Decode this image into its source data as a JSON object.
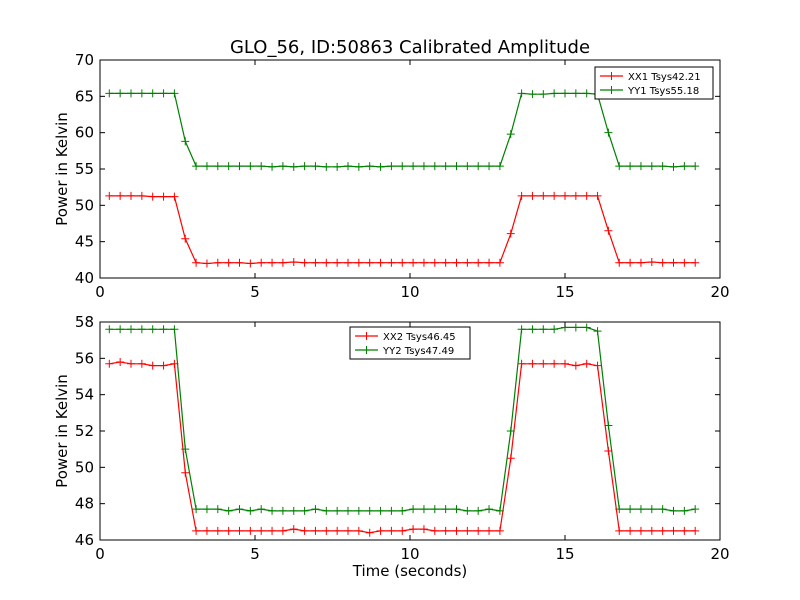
{
  "figure_title": "GLO_56, ID:50863 Calibrated Amplitude",
  "colors": {
    "xx": "#ff0000",
    "yy": "#008000",
    "axis": "#000000",
    "background": "#ffffff"
  },
  "chart_data": [
    {
      "type": "line",
      "title": "GLO_56, ID:50863 Calibrated Amplitude",
      "xlabel": "",
      "ylabel": "Power in Kelvin",
      "xlim": [
        0,
        20
      ],
      "ylim": [
        40,
        70
      ],
      "xticks": [
        0,
        5,
        10,
        15,
        20
      ],
      "yticks": [
        40,
        45,
        50,
        55,
        60,
        65,
        70
      ],
      "grid": false,
      "legend": "top-right",
      "x": [
        0.3,
        0.65,
        1.0,
        1.35,
        1.7,
        2.05,
        2.4,
        2.75,
        3.1,
        3.45,
        3.8,
        4.15,
        4.5,
        4.85,
        5.2,
        5.55,
        5.9,
        6.25,
        6.6,
        6.95,
        7.3,
        7.65,
        8.0,
        8.35,
        8.7,
        9.05,
        9.4,
        9.75,
        10.1,
        10.45,
        10.8,
        11.15,
        11.5,
        11.85,
        12.2,
        12.55,
        12.9,
        13.25,
        13.6,
        13.95,
        14.3,
        14.65,
        15.0,
        15.35,
        15.7,
        16.05,
        16.4,
        16.75,
        17.1,
        17.45,
        17.8,
        18.15,
        18.5,
        18.85,
        19.2
      ],
      "series": [
        {
          "name": "XX1 Tsys42.21",
          "color": "#ff0000",
          "values": [
            51.3,
            51.3,
            51.3,
            51.3,
            51.2,
            51.2,
            51.2,
            45.4,
            42.1,
            42.0,
            42.1,
            42.1,
            42.1,
            42.0,
            42.1,
            42.1,
            42.1,
            42.2,
            42.1,
            42.1,
            42.1,
            42.1,
            42.1,
            42.1,
            42.1,
            42.1,
            42.1,
            42.1,
            42.1,
            42.1,
            42.1,
            42.1,
            42.1,
            42.1,
            42.1,
            42.1,
            42.1,
            46.1,
            51.3,
            51.3,
            51.3,
            51.3,
            51.3,
            51.3,
            51.3,
            51.3,
            46.5,
            42.1,
            42.1,
            42.1,
            42.2,
            42.1,
            42.1,
            42.1,
            42.1
          ]
        },
        {
          "name": "YY1 Tsys55.18",
          "color": "#008000",
          "values": [
            65.4,
            65.4,
            65.4,
            65.4,
            65.4,
            65.4,
            65.4,
            58.8,
            55.4,
            55.4,
            55.4,
            55.4,
            55.4,
            55.4,
            55.4,
            55.3,
            55.4,
            55.3,
            55.4,
            55.4,
            55.3,
            55.3,
            55.4,
            55.3,
            55.4,
            55.3,
            55.4,
            55.4,
            55.4,
            55.4,
            55.4,
            55.4,
            55.4,
            55.4,
            55.4,
            55.4,
            55.4,
            59.8,
            65.4,
            65.3,
            65.3,
            65.4,
            65.4,
            65.4,
            65.4,
            65.3,
            60.0,
            55.4,
            55.4,
            55.4,
            55.4,
            55.4,
            55.3,
            55.4,
            55.4
          ]
        }
      ]
    },
    {
      "type": "line",
      "title": "",
      "xlabel": "Time (seconds)",
      "ylabel": "Power in Kelvin",
      "xlim": [
        0,
        20
      ],
      "ylim": [
        46,
        58
      ],
      "xticks": [
        0,
        5,
        10,
        15,
        20
      ],
      "yticks": [
        46,
        48,
        50,
        52,
        54,
        56,
        58
      ],
      "grid": false,
      "legend": "top-center",
      "x": [
        0.3,
        0.65,
        1.0,
        1.35,
        1.7,
        2.05,
        2.4,
        2.75,
        3.1,
        3.45,
        3.8,
        4.15,
        4.5,
        4.85,
        5.2,
        5.55,
        5.9,
        6.25,
        6.6,
        6.95,
        7.3,
        7.65,
        8.0,
        8.35,
        8.7,
        9.05,
        9.4,
        9.75,
        10.1,
        10.45,
        10.8,
        11.15,
        11.5,
        11.85,
        12.2,
        12.55,
        12.9,
        13.25,
        13.6,
        13.95,
        14.3,
        14.65,
        15.0,
        15.35,
        15.7,
        16.05,
        16.4,
        16.75,
        17.1,
        17.45,
        17.8,
        18.15,
        18.5,
        18.85,
        19.2
      ],
      "series": [
        {
          "name": "XX2 Tsys46.45",
          "color": "#ff0000",
          "values": [
            55.7,
            55.8,
            55.7,
            55.7,
            55.6,
            55.6,
            55.7,
            49.7,
            46.5,
            46.5,
            46.5,
            46.5,
            46.5,
            46.5,
            46.5,
            46.5,
            46.5,
            46.6,
            46.5,
            46.5,
            46.5,
            46.5,
            46.5,
            46.5,
            46.4,
            46.5,
            46.5,
            46.5,
            46.6,
            46.6,
            46.5,
            46.5,
            46.5,
            46.5,
            46.5,
            46.5,
            46.5,
            50.5,
            55.7,
            55.7,
            55.7,
            55.7,
            55.7,
            55.6,
            55.7,
            55.6,
            50.9,
            46.5,
            46.5,
            46.5,
            46.5,
            46.5,
            46.5,
            46.5,
            46.5
          ]
        },
        {
          "name": "YY2 Tsys47.49",
          "color": "#008000",
          "values": [
            57.6,
            57.6,
            57.6,
            57.6,
            57.6,
            57.6,
            57.6,
            51.0,
            47.7,
            47.7,
            47.7,
            47.6,
            47.7,
            47.6,
            47.7,
            47.6,
            47.6,
            47.6,
            47.6,
            47.7,
            47.6,
            47.6,
            47.6,
            47.6,
            47.6,
            47.6,
            47.6,
            47.6,
            47.7,
            47.7,
            47.7,
            47.7,
            47.7,
            47.6,
            47.6,
            47.7,
            47.6,
            52.0,
            57.6,
            57.6,
            57.6,
            57.6,
            57.7,
            57.7,
            57.7,
            57.5,
            52.3,
            47.7,
            47.7,
            47.7,
            47.7,
            47.7,
            47.6,
            47.6,
            47.7
          ]
        }
      ]
    }
  ]
}
